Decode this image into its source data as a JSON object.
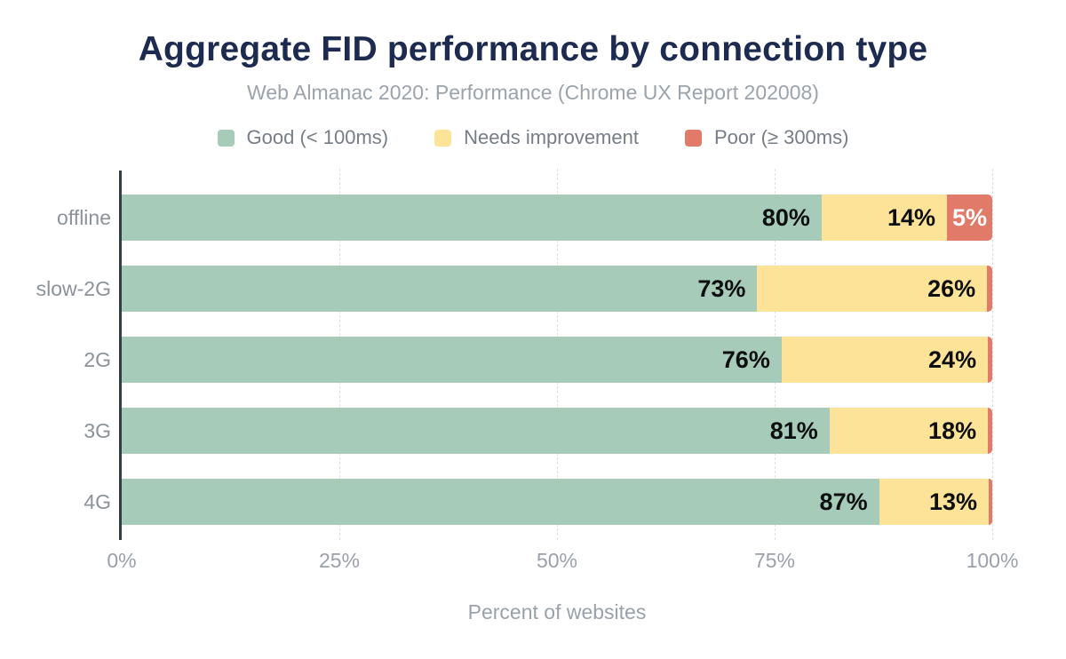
{
  "title": "Aggregate FID performance by connection type",
  "subtitle": "Web Almanac 2020: Performance (Chrome UX Report 202008)",
  "legend": [
    {
      "label": "Good (< 100ms)",
      "color": "#a6cbb8"
    },
    {
      "label": "Needs improvement",
      "color": "#fde398"
    },
    {
      "label": "Poor (≥ 300ms)",
      "color": "#e17a68"
    }
  ],
  "colors": {
    "good": "#a6cbb8",
    "needs_improvement": "#fde398",
    "poor": "#e17a68",
    "title_text": "#1e2b50"
  },
  "chart_data": {
    "type": "bar",
    "orientation": "horizontal",
    "stacked": true,
    "title": "Aggregate FID performance by connection type",
    "subtitle": "Web Almanac 2020: Performance (Chrome UX Report 202008)",
    "categories": [
      "offline",
      "slow-2G",
      "2G",
      "3G",
      "4G"
    ],
    "series": [
      {
        "name": "Good (< 100ms)",
        "color": "#a6cbb8",
        "values": [
          80.4,
          73.0,
          75.8,
          81.3,
          87.0
        ],
        "labels": [
          "80%",
          "73%",
          "76%",
          "81%",
          "87%"
        ]
      },
      {
        "name": "Needs improvement",
        "color": "#fde398",
        "values": [
          14.4,
          26.4,
          23.7,
          18.2,
          12.6
        ],
        "labels": [
          "14%",
          "26%",
          "24%",
          "18%",
          "13%"
        ]
      },
      {
        "name": "Poor (≥ 300ms)",
        "color": "#e17a68",
        "values": [
          5.2,
          0.6,
          0.5,
          0.5,
          0.4
        ],
        "labels": [
          "5%",
          "",
          "",
          "",
          ""
        ]
      }
    ],
    "xlabel": "Percent of websites",
    "xlim": [
      0,
      100
    ],
    "x_ticks": [
      {
        "label": "0%",
        "pos": 0
      },
      {
        "label": "25%",
        "pos": 25
      },
      {
        "label": "50%",
        "pos": 50
      },
      {
        "label": "75%",
        "pos": 75
      },
      {
        "label": "100%",
        "pos": 100
      }
    ],
    "gridlines": {
      "style": "dashed",
      "positions": [
        25,
        50,
        75,
        100
      ]
    },
    "legend_position": "top"
  }
}
